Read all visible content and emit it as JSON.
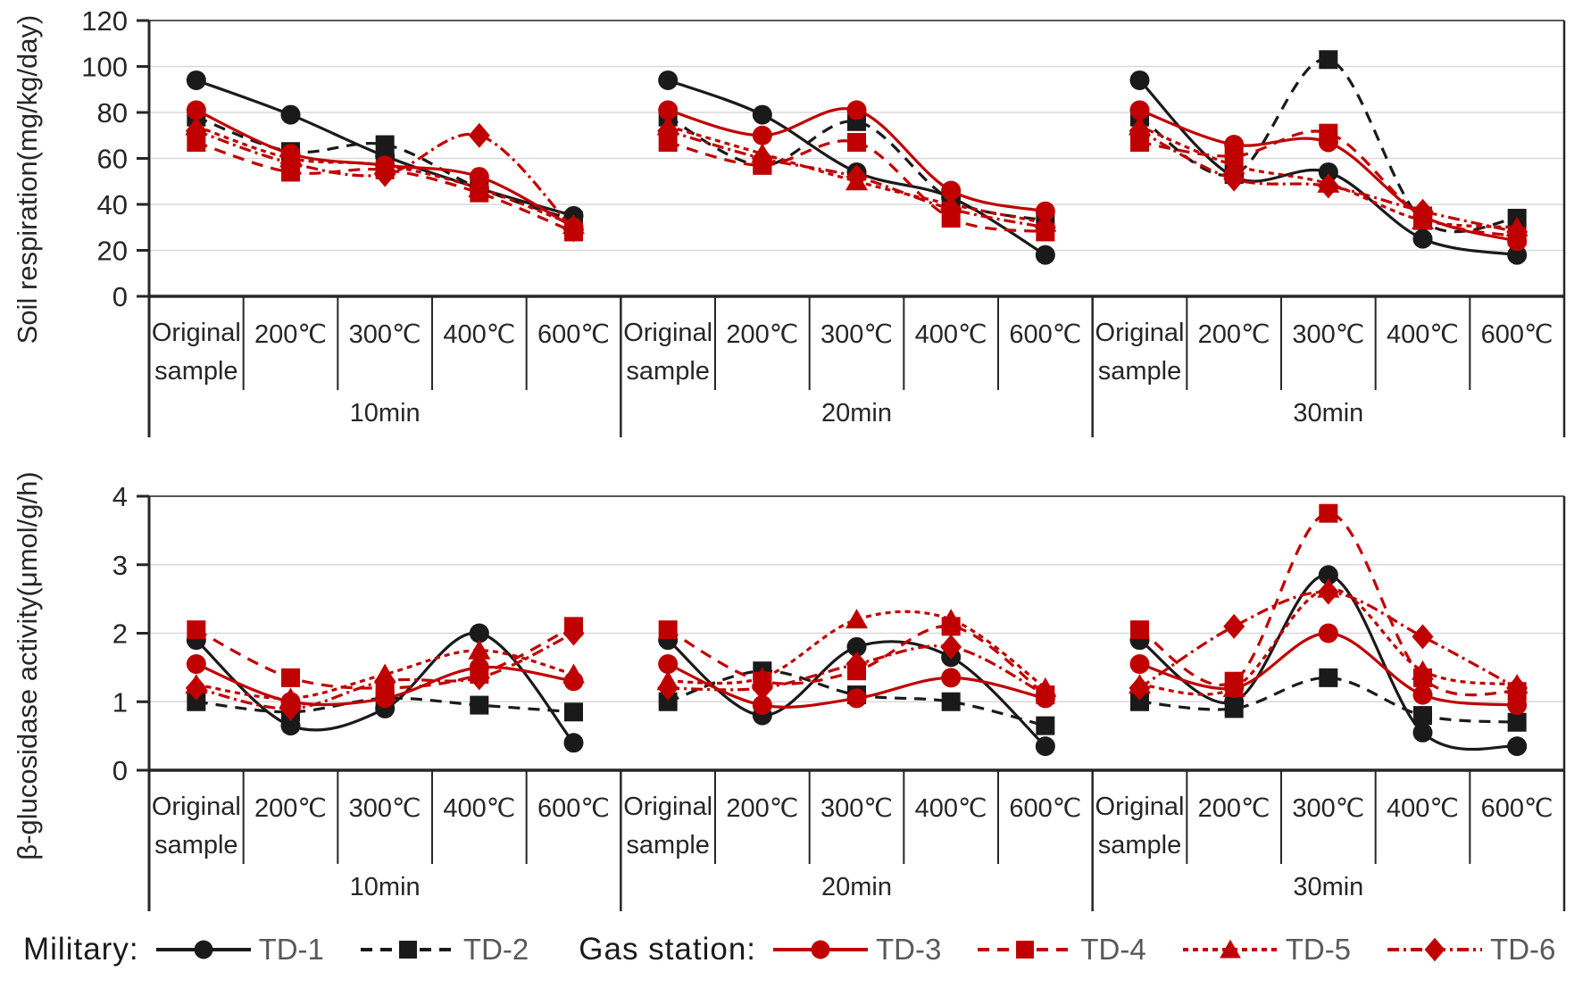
{
  "figure_title": "",
  "chart_data": [
    {
      "type": "line",
      "panel": "top",
      "ylabel": "Soil respiration(mg/kg/day)",
      "ylim": [
        0,
        120
      ],
      "yticks": [
        0,
        20,
        40,
        60,
        80,
        100,
        120
      ],
      "grid": true,
      "legend_position": "bottom",
      "groups": [
        "10min",
        "20min",
        "30min"
      ],
      "categories": [
        "Original sample",
        "200℃",
        "300℃",
        "400℃",
        "600℃"
      ],
      "series": [
        {
          "name": "TD-1",
          "site": "Military",
          "color": "#1a1a1a",
          "marker": "circle",
          "line": "solid",
          "values": [
            [
              94,
              79,
              61,
              47,
              35
            ],
            [
              94,
              79,
              54,
              43,
              18
            ],
            [
              94,
              52,
              54,
              25,
              18
            ]
          ]
        },
        {
          "name": "TD-2",
          "site": "Military",
          "color": "#1a1a1a",
          "marker": "square",
          "line": "dashed",
          "values": [
            [
              78,
              63,
              66,
              47,
              33
            ],
            [
              78,
              57,
              76,
              42,
              33
            ],
            [
              78,
              53,
              103,
              33,
              34
            ]
          ]
        },
        {
          "name": "TD-3",
          "site": "Gas station",
          "color": "#c00000",
          "marker": "circle",
          "line": "solid",
          "values": [
            [
              81,
              62,
              57,
              52,
              30
            ],
            [
              81,
              70,
              81,
              46,
              37
            ],
            [
              81,
              66,
              67,
              35,
              24
            ]
          ]
        },
        {
          "name": "TD-4",
          "site": "Gas station",
          "color": "#c00000",
          "marker": "square",
          "line": "dashed",
          "values": [
            [
              67,
              54,
              55,
              45,
              28
            ],
            [
              67,
              57,
              67,
              34,
              28
            ],
            [
              67,
              61,
              71,
              35,
              26
            ]
          ]
        },
        {
          "name": "TD-5",
          "site": "Gas station",
          "color": "#c00000",
          "marker": "triangle",
          "line": "densedash",
          "values": [
            [
              74,
              60,
              57,
              47,
              31
            ],
            [
              74,
              62,
              50,
              40,
              32
            ],
            [
              74,
              57,
              49,
              33,
              30
            ]
          ]
        },
        {
          "name": "TD-6",
          "site": "Gas station",
          "color": "#c00000",
          "marker": "diamond",
          "line": "dashdot",
          "values": [
            [
              72,
              58,
              53,
              70,
              29
            ],
            [
              72,
              60,
              52,
              38,
              30
            ],
            [
              72,
              51,
              48,
              37,
              28
            ]
          ]
        }
      ]
    },
    {
      "type": "line",
      "panel": "bottom",
      "ylabel": "β-glucosidase activity(μmol/g/h)",
      "ylim": [
        0,
        4
      ],
      "yticks": [
        0,
        1,
        2,
        3,
        4
      ],
      "grid": true,
      "legend_position": "bottom",
      "groups": [
        "10min",
        "20min",
        "30min"
      ],
      "categories": [
        "Original sample",
        "200℃",
        "300℃",
        "400℃",
        "600℃"
      ],
      "series": [
        {
          "name": "TD-1",
          "site": "Military",
          "color": "#1a1a1a",
          "marker": "circle",
          "line": "solid",
          "values": [
            [
              1.9,
              0.65,
              0.9,
              2.0,
              0.4
            ],
            [
              1.9,
              0.8,
              1.8,
              1.65,
              0.35
            ],
            [
              1.9,
              1.0,
              2.85,
              0.55,
              0.35
            ]
          ]
        },
        {
          "name": "TD-2",
          "site": "Military",
          "color": "#1a1a1a",
          "marker": "square",
          "line": "dashed",
          "values": [
            [
              1.0,
              0.85,
              1.05,
              0.95,
              0.85
            ],
            [
              1.0,
              1.45,
              1.1,
              1.0,
              0.65
            ],
            [
              1.0,
              0.9,
              1.35,
              0.8,
              0.7
            ]
          ]
        },
        {
          "name": "TD-3",
          "site": "Gas station",
          "color": "#c00000",
          "marker": "circle",
          "line": "solid",
          "values": [
            [
              1.55,
              1.0,
              1.05,
              1.5,
              1.3
            ],
            [
              1.55,
              0.95,
              1.05,
              1.35,
              1.05
            ],
            [
              1.55,
              1.2,
              2.0,
              1.1,
              0.95
            ]
          ]
        },
        {
          "name": "TD-4",
          "site": "Gas station",
          "color": "#c00000",
          "marker": "square",
          "line": "dashed",
          "values": [
            [
              2.05,
              1.35,
              1.2,
              1.4,
              2.1
            ],
            [
              2.05,
              1.3,
              1.45,
              2.1,
              1.1
            ],
            [
              2.05,
              1.3,
              3.75,
              1.35,
              1.15
            ]
          ]
        },
        {
          "name": "TD-5",
          "site": "Gas station",
          "color": "#c00000",
          "marker": "triangle",
          "line": "densedash",
          "values": [
            [
              1.25,
              1.05,
              1.4,
              1.75,
              1.4
            ],
            [
              1.3,
              1.35,
              2.2,
              2.2,
              1.2
            ],
            [
              1.25,
              1.2,
              2.65,
              1.45,
              1.25
            ]
          ]
        },
        {
          "name": "TD-6",
          "site": "Gas station",
          "color": "#c00000",
          "marker": "diamond",
          "line": "dashdot",
          "values": [
            [
              1.2,
              0.9,
              1.3,
              1.35,
              2.0
            ],
            [
              1.2,
              1.2,
              1.55,
              1.8,
              1.1
            ],
            [
              1.2,
              2.1,
              2.6,
              1.95,
              1.2
            ]
          ]
        }
      ]
    }
  ],
  "legend": {
    "groups": [
      {
        "label": "Military:",
        "items": [
          "TD-1",
          "TD-2"
        ]
      },
      {
        "label": "Gas station:",
        "items": [
          "TD-3",
          "TD-4",
          "TD-5",
          "TD-6"
        ]
      }
    ]
  },
  "colors": {
    "military": "#1a1a1a",
    "gas_station": "#c00000",
    "grid": "#d9d9d9",
    "axis": "#262626"
  }
}
